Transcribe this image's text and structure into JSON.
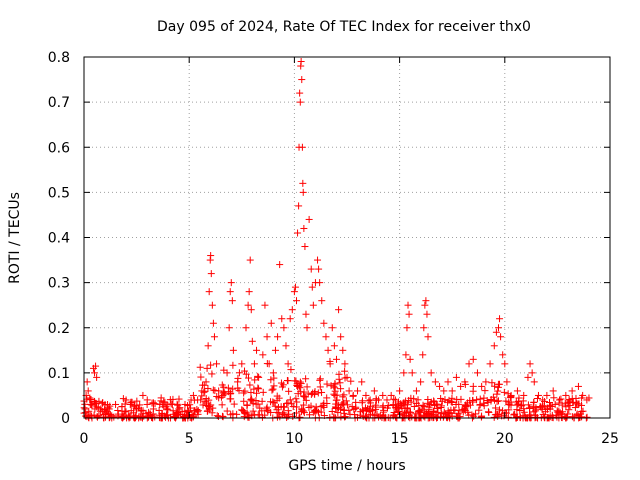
{
  "chart_data": {
    "type": "scatter",
    "title": "Day 095 of 2024, Rate Of TEC Index for receiver thx0",
    "xlabel": "GPS time / hours",
    "ylabel": "ROTI / TECUs",
    "xlim": [
      0,
      25
    ],
    "ylim": [
      0,
      0.8
    ],
    "xticks": [
      0,
      5,
      10,
      15,
      20,
      25
    ],
    "yticks": [
      0,
      0.1,
      0.2,
      0.3,
      0.4,
      0.5,
      0.6,
      0.7,
      0.8
    ],
    "xtick_labels": [
      "0",
      "5",
      "10",
      "15",
      "20",
      "25"
    ],
    "ytick_labels": [
      "0",
      "0.1",
      "0.2",
      "0.3",
      "0.4",
      "0.5",
      "0.6",
      "0.7",
      "0.8"
    ],
    "grid": true,
    "marker": "+",
    "color": "#ff0000",
    "series": [
      {
        "points": [
          [
            0.05,
            0.02
          ],
          [
            0.1,
            0.05
          ],
          [
            0.15,
            0.08
          ],
          [
            0.2,
            0.06
          ],
          [
            0.3,
            0.03
          ],
          [
            0.45,
            0.11
          ],
          [
            0.5,
            0.1
          ],
          [
            0.55,
            0.115
          ],
          [
            0.6,
            0.09
          ],
          [
            0.8,
            0.02
          ],
          [
            1.0,
            0.03
          ],
          [
            1.2,
            0.02
          ],
          [
            1.5,
            0.03
          ],
          [
            1.8,
            0.025
          ],
          [
            2.0,
            0.04
          ],
          [
            2.2,
            0.03
          ],
          [
            2.5,
            0.02
          ],
          [
            2.8,
            0.05
          ],
          [
            3.0,
            0.03
          ],
          [
            3.3,
            0.02
          ],
          [
            3.6,
            0.03
          ],
          [
            3.9,
            0.025
          ],
          [
            4.2,
            0.03
          ],
          [
            4.5,
            0.02
          ],
          [
            4.8,
            0.03
          ],
          [
            5.2,
            0.05
          ],
          [
            5.4,
            0.04
          ],
          [
            5.6,
            0.06
          ],
          [
            5.8,
            0.08
          ],
          [
            5.85,
            0.11
          ],
          [
            5.9,
            0.16
          ],
          [
            5.95,
            0.28
          ],
          [
            6.0,
            0.35
          ],
          [
            6.02,
            0.36
          ],
          [
            6.05,
            0.32
          ],
          [
            6.1,
            0.25
          ],
          [
            6.15,
            0.21
          ],
          [
            6.2,
            0.18
          ],
          [
            6.3,
            0.12
          ],
          [
            6.4,
            0.06
          ],
          [
            6.6,
            0.05
          ],
          [
            6.8,
            0.1
          ],
          [
            6.9,
            0.2
          ],
          [
            6.95,
            0.28
          ],
          [
            7.0,
            0.3
          ],
          [
            7.05,
            0.26
          ],
          [
            7.1,
            0.15
          ],
          [
            7.3,
            0.08
          ],
          [
            7.5,
            0.12
          ],
          [
            7.7,
            0.2
          ],
          [
            7.8,
            0.25
          ],
          [
            7.85,
            0.28
          ],
          [
            7.9,
            0.35
          ],
          [
            7.95,
            0.24
          ],
          [
            8.0,
            0.17
          ],
          [
            8.1,
            0.12
          ],
          [
            8.2,
            0.15
          ],
          [
            8.3,
            0.09
          ],
          [
            8.5,
            0.14
          ],
          [
            8.6,
            0.25
          ],
          [
            8.7,
            0.18
          ],
          [
            8.8,
            0.12
          ],
          [
            8.9,
            0.21
          ],
          [
            9.0,
            0.1
          ],
          [
            9.1,
            0.15
          ],
          [
            9.2,
            0.18
          ],
          [
            9.3,
            0.34
          ],
          [
            9.4,
            0.22
          ],
          [
            9.5,
            0.2
          ],
          [
            9.6,
            0.16
          ],
          [
            9.7,
            0.12
          ],
          [
            9.8,
            0.22
          ],
          [
            9.9,
            0.24
          ],
          [
            10.0,
            0.28
          ],
          [
            10.05,
            0.29
          ],
          [
            10.1,
            0.26
          ],
          [
            10.15,
            0.41
          ],
          [
            10.2,
            0.47
          ],
          [
            10.22,
            0.6
          ],
          [
            10.25,
            0.72
          ],
          [
            10.28,
            0.7
          ],
          [
            10.3,
            0.78
          ],
          [
            10.32,
            0.79
          ],
          [
            10.35,
            0.75
          ],
          [
            10.38,
            0.6
          ],
          [
            10.4,
            0.52
          ],
          [
            10.42,
            0.5
          ],
          [
            10.45,
            0.42
          ],
          [
            10.5,
            0.38
          ],
          [
            10.55,
            0.23
          ],
          [
            10.6,
            0.2
          ],
          [
            10.7,
            0.44
          ],
          [
            10.8,
            0.33
          ],
          [
            10.85,
            0.29
          ],
          [
            10.9,
            0.25
          ],
          [
            11.0,
            0.3
          ],
          [
            11.1,
            0.35
          ],
          [
            11.15,
            0.33
          ],
          [
            11.2,
            0.3
          ],
          [
            11.3,
            0.26
          ],
          [
            11.4,
            0.21
          ],
          [
            11.5,
            0.18
          ],
          [
            11.6,
            0.15
          ],
          [
            11.7,
            0.12
          ],
          [
            11.8,
            0.2
          ],
          [
            11.9,
            0.16
          ],
          [
            12.0,
            0.13
          ],
          [
            12.1,
            0.24
          ],
          [
            12.2,
            0.18
          ],
          [
            12.3,
            0.15
          ],
          [
            12.4,
            0.12
          ],
          [
            12.5,
            0.09
          ],
          [
            12.6,
            0.06
          ],
          [
            12.8,
            0.05
          ],
          [
            13.0,
            0.06
          ],
          [
            13.2,
            0.08
          ],
          [
            13.4,
            0.05
          ],
          [
            13.6,
            0.04
          ],
          [
            13.8,
            0.06
          ],
          [
            14.0,
            0.04
          ],
          [
            14.2,
            0.05
          ],
          [
            14.4,
            0.04
          ],
          [
            14.6,
            0.05
          ],
          [
            14.8,
            0.04
          ],
          [
            15.0,
            0.06
          ],
          [
            15.2,
            0.1
          ],
          [
            15.3,
            0.14
          ],
          [
            15.35,
            0.2
          ],
          [
            15.4,
            0.25
          ],
          [
            15.45,
            0.23
          ],
          [
            15.5,
            0.13
          ],
          [
            15.6,
            0.1
          ],
          [
            15.8,
            0.06
          ],
          [
            16.0,
            0.08
          ],
          [
            16.1,
            0.14
          ],
          [
            16.15,
            0.2
          ],
          [
            16.2,
            0.25
          ],
          [
            16.25,
            0.26
          ],
          [
            16.3,
            0.23
          ],
          [
            16.35,
            0.18
          ],
          [
            16.5,
            0.1
          ],
          [
            16.7,
            0.08
          ],
          [
            16.9,
            0.07
          ],
          [
            17.1,
            0.06
          ],
          [
            17.3,
            0.08
          ],
          [
            17.5,
            0.06
          ],
          [
            17.7,
            0.09
          ],
          [
            17.9,
            0.07
          ],
          [
            18.1,
            0.08
          ],
          [
            18.3,
            0.12
          ],
          [
            18.5,
            0.13
          ],
          [
            18.7,
            0.1
          ],
          [
            18.9,
            0.07
          ],
          [
            19.1,
            0.08
          ],
          [
            19.3,
            0.12
          ],
          [
            19.5,
            0.16
          ],
          [
            19.6,
            0.19
          ],
          [
            19.7,
            0.2
          ],
          [
            19.75,
            0.22
          ],
          [
            19.8,
            0.18
          ],
          [
            19.9,
            0.14
          ],
          [
            20.0,
            0.12
          ],
          [
            20.1,
            0.08
          ],
          [
            20.3,
            0.05
          ],
          [
            20.6,
            0.06
          ],
          [
            20.9,
            0.05
          ],
          [
            21.1,
            0.09
          ],
          [
            21.2,
            0.12
          ],
          [
            21.3,
            0.1
          ],
          [
            21.4,
            0.08
          ],
          [
            21.6,
            0.05
          ],
          [
            21.8,
            0.04
          ],
          [
            22.0,
            0.05
          ],
          [
            22.3,
            0.06
          ],
          [
            22.6,
            0.04
          ],
          [
            22.9,
            0.05
          ],
          [
            23.2,
            0.06
          ],
          [
            23.5,
            0.07
          ],
          [
            23.7,
            0.05
          ],
          [
            23.9,
            0.04
          ]
        ]
      }
    ]
  }
}
